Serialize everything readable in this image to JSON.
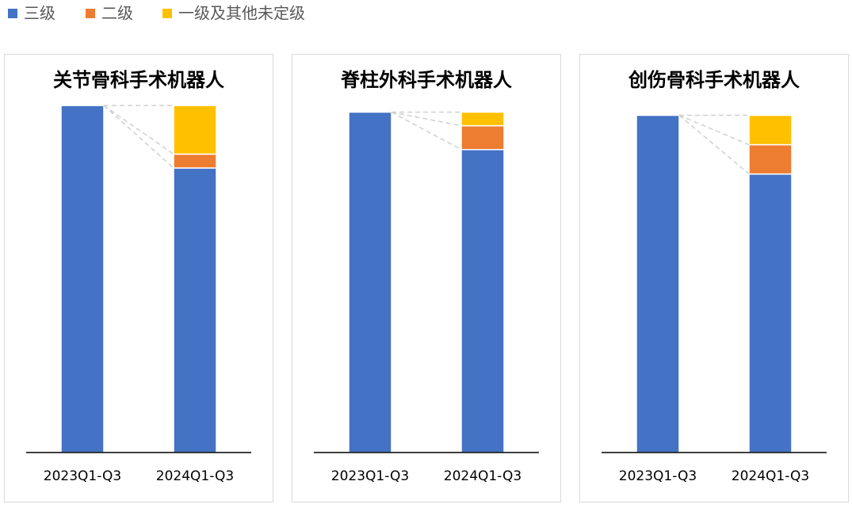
{
  "chart_data": [
    {
      "type": "bar",
      "stacked": true,
      "title": "关节骨科手术机器人",
      "categories": [
        "2023Q1-Q3",
        "2024Q1-Q3"
      ],
      "ylim": [
        0,
        103
      ],
      "series": [
        {
          "name": "三级",
          "color": "#4472c4",
          "values": [
            100,
            82
          ]
        },
        {
          "name": "二级",
          "color": "#ed7d31",
          "values": [
            0,
            4
          ]
        },
        {
          "name": "一级及其他未定级",
          "color": "#ffc000",
          "values": [
            0,
            14
          ]
        }
      ]
    },
    {
      "type": "bar",
      "stacked": true,
      "title": "脊柱外科手术机器人",
      "categories": [
        "2023Q1-Q3",
        "2024Q1-Q3"
      ],
      "ylim": [
        0,
        105
      ],
      "series": [
        {
          "color": "#4472c4",
          "values": [
            100,
            89
          ]
        },
        {
          "color": "#ed7d31",
          "values": [
            0,
            7
          ]
        },
        {
          "color": "#ffc000",
          "values": [
            0,
            4
          ]
        }
      ]
    },
    {
      "type": "bar",
      "stacked": true,
      "title": "创伤骨科手术机器人",
      "categories": [
        "2023Q1-Q3",
        "2024Q1-Q3"
      ],
      "ylim": [
        0,
        106
      ],
      "series": [
        {
          "color": "#4472c4",
          "values": [
            100,
            82.6
          ]
        },
        {
          "color": "#ed7d31",
          "values": [
            0,
            8.7
          ]
        },
        {
          "color": "#ffc000",
          "values": [
            0,
            8.7
          ]
        }
      ]
    }
  ]
}
